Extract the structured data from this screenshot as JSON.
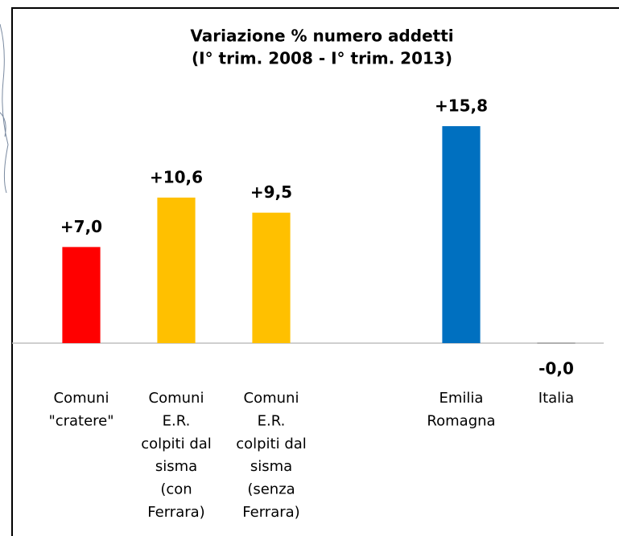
{
  "chart_data": {
    "type": "bar",
    "title": "Variazione % numero addetti",
    "subtitle": "(I° trim. 2008 - I° trim. 2013)",
    "categories": [
      [
        "Comuni",
        "\"cratere\""
      ],
      [
        "Comuni",
        "E.R.",
        "colpiti dal",
        "sisma",
        "(con",
        "Ferrara)"
      ],
      [
        "Comuni",
        "E.R.",
        "colpiti dal",
        "sisma",
        "(senza",
        "Ferrara)"
      ],
      null,
      [
        "Emilia",
        "Romagna"
      ],
      [
        "Italia"
      ]
    ],
    "values": [
      7.0,
      10.6,
      9.5,
      null,
      15.8,
      0
    ],
    "value_labels": [
      "+7,0",
      "+10,6",
      "+9,5",
      null,
      "+15,8",
      "-0,0"
    ],
    "colors": [
      "#ff0000",
      "#ffc000",
      "#ffc000",
      null,
      "#0070c0",
      "#808080"
    ],
    "ylim": [
      0,
      18
    ]
  }
}
